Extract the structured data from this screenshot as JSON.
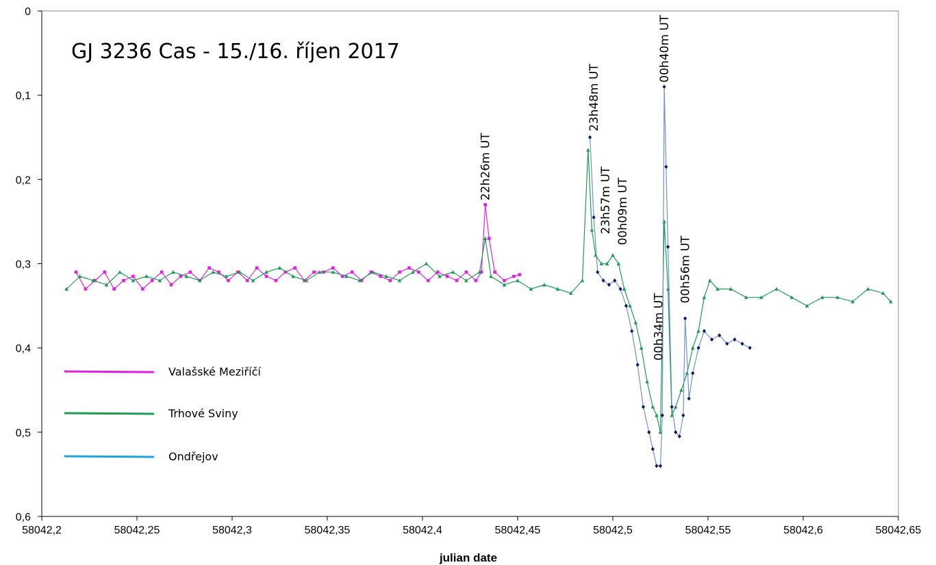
{
  "chart_data": {
    "type": "line",
    "title": "GJ 3236 Cas - 15./16. říjen 2017",
    "xlabel": "julian date",
    "ylabel": "",
    "xlim": [
      58042.2,
      58042.65
    ],
    "ylim": [
      0,
      0.6
    ],
    "y_inverted": true,
    "grid": false,
    "legend_position": "left",
    "x_ticks": [
      58042.2,
      58042.25,
      58042.3,
      58042.35,
      58042.4,
      58042.45,
      58042.5,
      58042.55,
      58042.6,
      58042.65
    ],
    "x_tick_labels": [
      "58042,2",
      "58042,25",
      "58042,3",
      "58042,35",
      "58042,4",
      "58042,45",
      "58042,5",
      "58042,55",
      "58042,6",
      "58042,65"
    ],
    "y_ticks": [
      0,
      0.1,
      0.2,
      0.3,
      0.4,
      0.5,
      0.6
    ],
    "y_tick_labels": [
      "0",
      "0,1",
      "0,2",
      "0,3",
      "0,4",
      "0,5",
      "0,6"
    ],
    "legend": [
      {
        "name": "Valašské Meziříčí",
        "color": "#e020e0"
      },
      {
        "name": "Trhové Sviny",
        "color": "#1e9a54"
      },
      {
        "name": "Ondřejov",
        "color": "#1aa3dc"
      }
    ],
    "annotations": [
      {
        "text": "22h26m UT",
        "x": 58042.433,
        "y": 0.225
      },
      {
        "text": "23h48m UT",
        "x": 58042.49,
        "y": 0.143
      },
      {
        "text": "23h57m UT",
        "x": 58042.496,
        "y": 0.265
      },
      {
        "text": "00h09m UT",
        "x": 58042.505,
        "y": 0.278
      },
      {
        "text": "00h34m UT",
        "x": 58042.524,
        "y": 0.415
      },
      {
        "text": "00h40m UT",
        "x": 58042.527,
        "y": 0.085
      },
      {
        "text": "00h56m UT",
        "x": 58042.538,
        "y": 0.347
      }
    ],
    "series": [
      {
        "name": "Valašské Meziříčí",
        "color": "#e020e0",
        "marker": "square",
        "x": [
          58042.218,
          58042.223,
          58042.228,
          58042.233,
          58042.238,
          58042.243,
          58042.248,
          58042.253,
          58042.258,
          58042.263,
          58042.268,
          58042.273,
          58042.278,
          58042.283,
          58042.288,
          58042.293,
          58042.298,
          58042.303,
          58042.308,
          58042.313,
          58042.318,
          58042.323,
          58042.328,
          58042.333,
          58042.338,
          58042.343,
          58042.348,
          58042.353,
          58042.358,
          58042.363,
          58042.368,
          58042.373,
          58042.378,
          58042.383,
          58042.388,
          58042.393,
          58042.398,
          58042.403,
          58042.408,
          58042.413,
          58042.418,
          58042.423,
          58042.428,
          58042.431,
          58042.433,
          58042.435,
          58042.438,
          58042.443,
          58042.448,
          58042.451
        ],
        "y": [
          0.31,
          0.33,
          0.32,
          0.31,
          0.33,
          0.32,
          0.315,
          0.33,
          0.32,
          0.31,
          0.325,
          0.315,
          0.31,
          0.32,
          0.305,
          0.31,
          0.32,
          0.31,
          0.32,
          0.305,
          0.315,
          0.32,
          0.31,
          0.305,
          0.32,
          0.31,
          0.31,
          0.305,
          0.315,
          0.31,
          0.32,
          0.31,
          0.315,
          0.32,
          0.31,
          0.305,
          0.31,
          0.32,
          0.31,
          0.315,
          0.32,
          0.31,
          0.32,
          0.31,
          0.23,
          0.27,
          0.31,
          0.32,
          0.315,
          0.313
        ]
      },
      {
        "name": "Trhové Sviny",
        "color": "#1e9a54",
        "marker": "triangle",
        "x": [
          58042.213,
          58042.22,
          58042.227,
          58042.234,
          58042.241,
          58042.248,
          58042.255,
          58042.262,
          58042.269,
          58042.276,
          58042.283,
          58042.29,
          58042.297,
          58042.304,
          58042.311,
          58042.318,
          58042.325,
          58042.332,
          58042.339,
          58042.346,
          58042.353,
          58042.36,
          58042.367,
          58042.374,
          58042.381,
          58042.388,
          58042.395,
          58042.402,
          58042.409,
          58042.416,
          58042.423,
          58042.43,
          58042.433,
          58042.436,
          58042.443,
          58042.45,
          58042.457,
          58042.464,
          58042.471,
          58042.478,
          58042.484,
          58042.487,
          58042.489,
          58042.491,
          58042.494,
          58042.497,
          58042.5,
          58042.503,
          58042.506,
          58042.509,
          58042.512,
          58042.515,
          58042.518,
          58042.521,
          58042.523,
          58042.525,
          58042.527,
          58042.529,
          58042.531,
          58042.533,
          58042.536,
          58042.539,
          58042.542,
          58042.545,
          58042.548,
          58042.551,
          58042.555,
          58042.562,
          58042.57,
          58042.578,
          58042.586,
          58042.594,
          58042.602,
          58042.61,
          58042.618,
          58042.626,
          58042.634,
          58042.642,
          58042.646
        ],
        "y": [
          0.33,
          0.315,
          0.32,
          0.325,
          0.31,
          0.32,
          0.315,
          0.32,
          0.31,
          0.315,
          0.32,
          0.31,
          0.315,
          0.31,
          0.32,
          0.31,
          0.305,
          0.315,
          0.32,
          0.31,
          0.31,
          0.315,
          0.32,
          0.31,
          0.315,
          0.32,
          0.31,
          0.3,
          0.315,
          0.31,
          0.32,
          0.31,
          0.27,
          0.315,
          0.325,
          0.32,
          0.33,
          0.325,
          0.33,
          0.335,
          0.32,
          0.165,
          0.26,
          0.29,
          0.3,
          0.3,
          0.29,
          0.3,
          0.33,
          0.35,
          0.37,
          0.4,
          0.44,
          0.47,
          0.48,
          0.5,
          0.25,
          0.33,
          0.48,
          0.47,
          0.45,
          0.43,
          0.4,
          0.38,
          0.34,
          0.32,
          0.33,
          0.33,
          0.34,
          0.34,
          0.33,
          0.34,
          0.35,
          0.34,
          0.34,
          0.345,
          0.33,
          0.335,
          0.345
        ]
      },
      {
        "name": "Ondřejov",
        "color": "#1aa3dc",
        "marker": "diamond",
        "x": [
          58042.488,
          58042.49,
          58042.492,
          58042.495,
          58042.498,
          58042.501,
          58042.504,
          58042.507,
          58042.51,
          58042.513,
          58042.516,
          58042.519,
          58042.521,
          58042.523,
          58042.525,
          58042.526,
          58042.527,
          58042.528,
          58042.529,
          58042.531,
          58042.533,
          58042.535,
          58042.537,
          58042.538,
          58042.54,
          58042.542,
          58042.545,
          58042.548,
          58042.552,
          58042.556,
          58042.56,
          58042.564,
          58042.568,
          58042.572
        ],
        "y": [
          0.15,
          0.245,
          0.31,
          0.32,
          0.325,
          0.32,
          0.33,
          0.35,
          0.38,
          0.42,
          0.47,
          0.5,
          0.52,
          0.54,
          0.54,
          0.48,
          0.09,
          0.185,
          0.28,
          0.47,
          0.5,
          0.505,
          0.48,
          0.365,
          0.46,
          0.43,
          0.4,
          0.38,
          0.39,
          0.385,
          0.395,
          0.39,
          0.395,
          0.4
        ]
      }
    ]
  }
}
